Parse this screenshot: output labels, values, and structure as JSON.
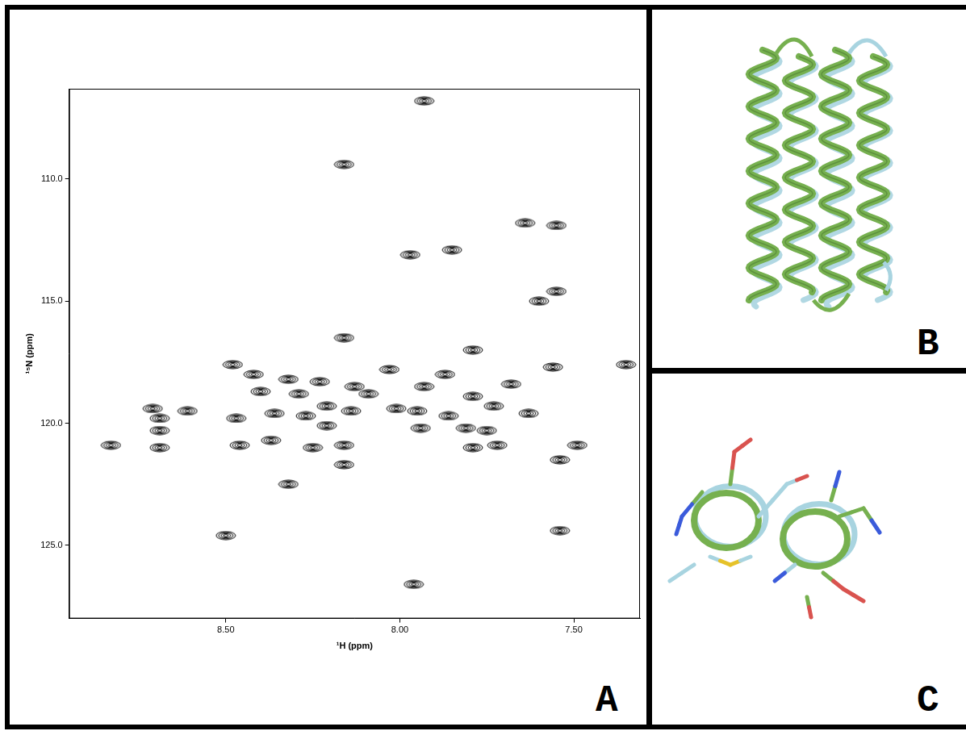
{
  "panel_labels": [
    "A",
    "B",
    "C"
  ],
  "chart_data": {
    "type": "scatter",
    "x_label": "¹H (ppm)",
    "y_label": "¹⁵N (ppm)",
    "xlim": [
      8.95,
      7.31
    ],
    "ylim": [
      128.0,
      106.3
    ],
    "xticks": [
      {
        "value": 8.5,
        "label": "8.50"
      },
      {
        "value": 8.0,
        "label": "8.00"
      },
      {
        "value": 7.5,
        "label": "7.50"
      }
    ],
    "yticks": [
      {
        "value": 110,
        "label": "110.0"
      },
      {
        "value": 115,
        "label": "115.0"
      },
      {
        "value": 120,
        "label": "120.0"
      },
      {
        "value": 125,
        "label": "125.0"
      }
    ],
    "x": [
      7.93,
      8.16,
      7.64,
      7.55,
      7.97,
      7.85,
      7.55,
      7.6,
      8.16,
      7.79,
      8.48,
      7.35,
      7.56,
      8.03,
      8.42,
      7.87,
      8.32,
      8.23,
      8.13,
      7.93,
      7.68,
      8.4,
      8.29,
      8.09,
      7.79,
      8.61,
      8.71,
      8.69,
      8.47,
      8.36,
      8.21,
      8.01,
      7.95,
      7.73,
      7.63,
      7.86,
      8.27,
      8.14,
      8.69,
      8.21,
      7.94,
      7.81,
      7.75,
      8.83,
      8.69,
      8.46,
      8.37,
      8.25,
      8.16,
      7.79,
      7.72,
      7.49,
      7.54,
      8.16,
      8.32,
      8.5,
      7.54,
      7.96
    ],
    "values": [
      106.8,
      109.4,
      111.8,
      111.9,
      113.1,
      112.9,
      114.6,
      115.0,
      116.5,
      117.0,
      117.6,
      117.6,
      117.7,
      117.8,
      118.0,
      118.0,
      118.2,
      118.3,
      118.5,
      118.5,
      118.4,
      118.7,
      118.8,
      118.8,
      118.9,
      119.5,
      119.4,
      119.8,
      119.8,
      119.6,
      119.3,
      119.4,
      119.5,
      119.3,
      119.6,
      119.7,
      119.7,
      119.5,
      120.3,
      120.1,
      120.2,
      120.2,
      120.3,
      120.9,
      121.0,
      120.9,
      120.7,
      121.0,
      120.9,
      121.0,
      120.9,
      120.9,
      121.5,
      121.7,
      122.5,
      124.6,
      124.4,
      126.6
    ],
    "color": "#000000",
    "marker": "contour",
    "grid": false
  }
}
